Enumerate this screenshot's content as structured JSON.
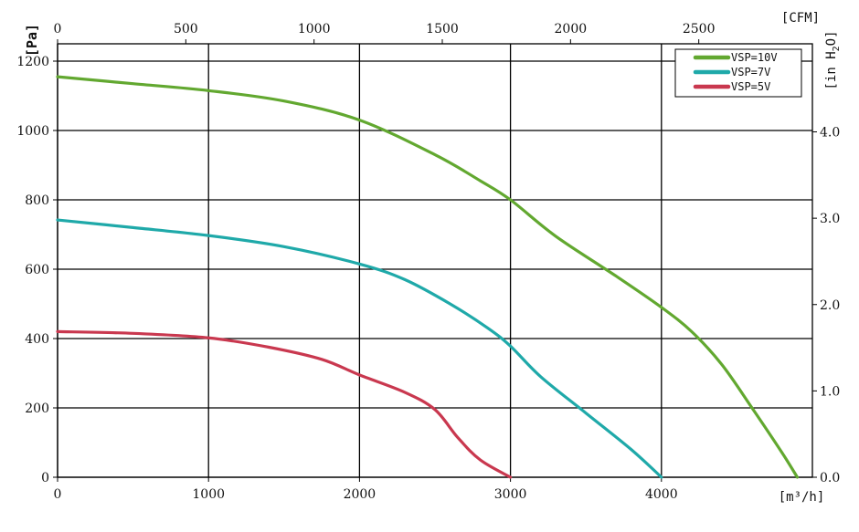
{
  "chart_data": {
    "type": "line",
    "title": "",
    "units": {
      "left": "[Pa]",
      "top": "[CFM]",
      "right": "[in H2O]",
      "right_main": "[in H",
      "right_sub": "2",
      "right_tail": "O]",
      "bottom": "[m³/h]"
    },
    "x": {
      "range": [
        0,
        5000
      ],
      "ticks": [
        0,
        1000,
        2000,
        3000,
        4000
      ],
      "tick_labels": [
        "0",
        "1000",
        "2000",
        "3000",
        "4000"
      ]
    },
    "y": {
      "range": [
        0,
        1250
      ],
      "ticks": [
        0,
        200,
        400,
        600,
        800,
        1000,
        1200
      ],
      "tick_labels": [
        "0",
        "200",
        "400",
        "600",
        "800",
        "1000",
        "1200"
      ]
    },
    "x_top": {
      "range": [
        0,
        2943
      ],
      "ticks": [
        0,
        500,
        1000,
        1500,
        2000,
        2500
      ],
      "tick_labels": [
        "0",
        "500",
        "1000",
        "1500",
        "2000",
        "2500"
      ]
    },
    "y_right": {
      "range": [
        0,
        5.02
      ],
      "ticks": [
        0,
        1,
        2,
        3,
        4
      ],
      "tick_labels": [
        "0.0",
        "1.0",
        "2.0",
        "3.0",
        "4.0"
      ]
    },
    "grid": true,
    "legend_position": "top-right",
    "series": [
      {
        "name": "VSP=10V",
        "color": "#62a830",
        "points": [
          [
            0,
            1155
          ],
          [
            500,
            1135
          ],
          [
            1000,
            1115
          ],
          [
            1500,
            1085
          ],
          [
            2000,
            1030
          ],
          [
            2500,
            930
          ],
          [
            2800,
            855
          ],
          [
            3000,
            800
          ],
          [
            3300,
            695
          ],
          [
            3700,
            580
          ],
          [
            4000,
            490
          ],
          [
            4200,
            420
          ],
          [
            4400,
            325
          ],
          [
            4600,
            200
          ],
          [
            4800,
            70
          ],
          [
            4900,
            0
          ]
        ]
      },
      {
        "name": "VSP=7V",
        "color": "#1fa9a9",
        "points": [
          [
            0,
            742
          ],
          [
            500,
            720
          ],
          [
            1000,
            697
          ],
          [
            1500,
            665
          ],
          [
            2000,
            615
          ],
          [
            2300,
            570
          ],
          [
            2600,
            500
          ],
          [
            2850,
            430
          ],
          [
            3000,
            378
          ],
          [
            3200,
            290
          ],
          [
            3500,
            185
          ],
          [
            3800,
            80
          ],
          [
            4000,
            0
          ]
        ]
      },
      {
        "name": "VSP=5V",
        "color": "#c9384f",
        "points": [
          [
            0,
            420
          ],
          [
            500,
            415
          ],
          [
            1000,
            402
          ],
          [
            1400,
            375
          ],
          [
            1750,
            340
          ],
          [
            2000,
            295
          ],
          [
            2300,
            245
          ],
          [
            2500,
            195
          ],
          [
            2650,
            115
          ],
          [
            2800,
            50
          ],
          [
            3000,
            0
          ]
        ]
      }
    ]
  }
}
